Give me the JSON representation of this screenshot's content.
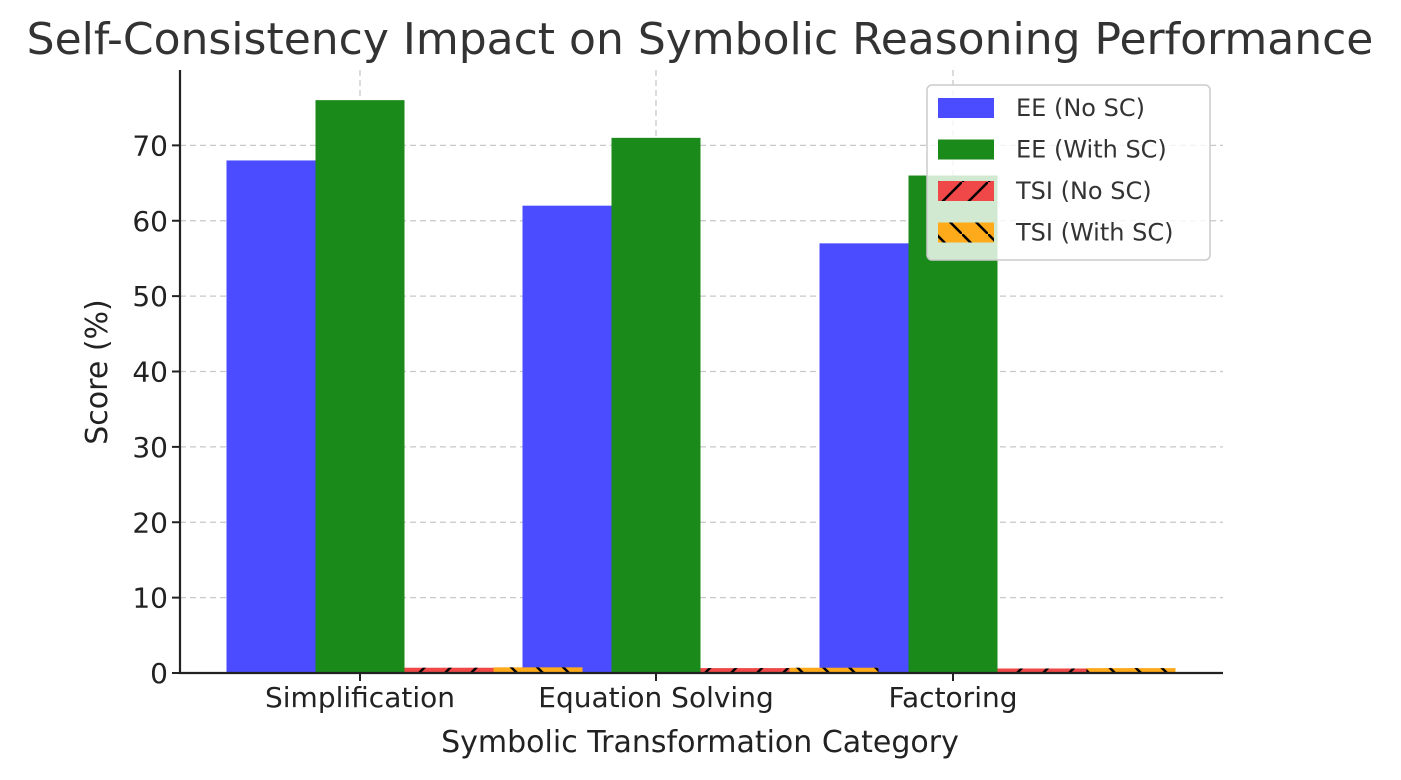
{
  "chart_data": {
    "type": "bar",
    "title": "Self-Consistency Impact on Symbolic Reasoning Performance",
    "xlabel": "Symbolic Transformation Category",
    "ylabel": "Score (%)",
    "categories": [
      "Simplification",
      "Equation Solving",
      "Factoring"
    ],
    "ylim": [
      0,
      80
    ],
    "yticks": [
      0,
      10,
      20,
      30,
      40,
      50,
      60,
      70
    ],
    "grid": true,
    "legend_position": "top-right",
    "series": [
      {
        "name": "EE (No SC)",
        "values": [
          68,
          62,
          57
        ],
        "color": "#4b4bff",
        "hatch": "none"
      },
      {
        "name": "EE (With SC)",
        "values": [
          76,
          71,
          66
        ],
        "color": "#1a8a1a",
        "hatch": "none"
      },
      {
        "name": "TSI (No SC)",
        "values": [
          0.7,
          0.65,
          0.6
        ],
        "color": "#f04848",
        "hatch": "forward"
      },
      {
        "name": "TSI (With SC)",
        "values": [
          0.75,
          0.7,
          0.65
        ],
        "color": "#ffaa1a",
        "hatch": "back"
      }
    ]
  }
}
